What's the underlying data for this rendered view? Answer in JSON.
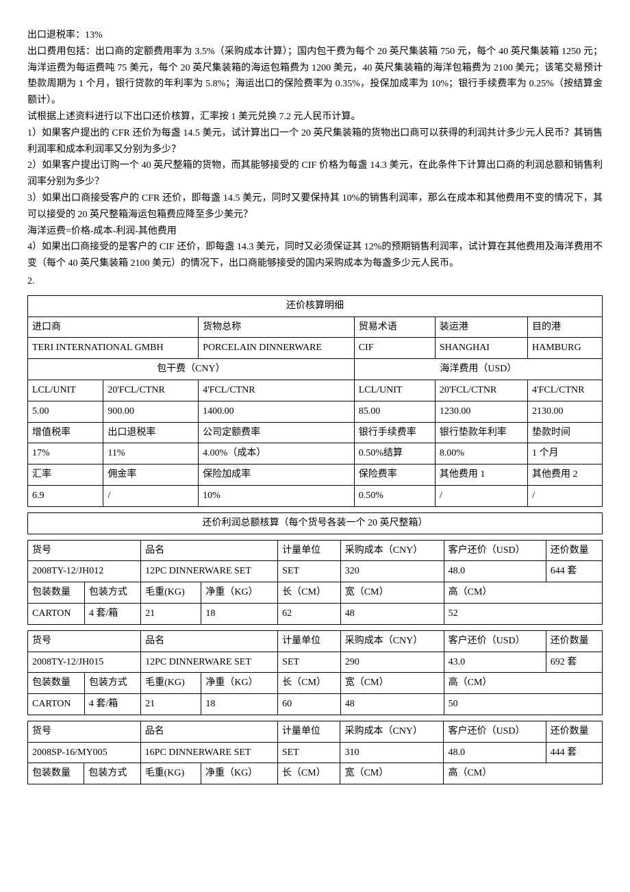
{
  "intro": {
    "p1": "出口退税率：13%",
    "p2": "出口费用包括：出口商的定额费用率为 3.5%（采购成本计算）；国内包干费为每个 20 英尺集装箱 750 元，每个 40 英尺集装箱 1250 元；海洋运费为每运费吨 75 美元，每个 20 英尺集装箱的海运包箱费为 1200 美元，40 英尺集装箱的海洋包箱费为 2100 美元；该笔交易预计垫款周期为 1 个月，银行贷款的年利率为 5.8%；海运出口的保险费率为 0.35%，投保加成率为 10%；银行手续费率为 0.25%（按结算金额计）。",
    "p3": "试根据上述资料进行以下出口还价核算，汇率按 1 美元兑换 7.2 元人民币计算。",
    "q1": "1）如果客户提出的 CFR 还价为每盏 14.5 美元，试计算出口一个 20 英尺集装箱的货物出口商可以获得的利润共计多少元人民币？其销售利润率和成本利润率又分别为多少？",
    "q2": "2）如果客户提出订购一个 40 英尺整箱的货物，而其能够接受的 CIF 价格为每盏 14.3 美元，在此条件下计算出口商的利润总额和销售利润率分别为多少？",
    "q3": "3）如果出口商接受客户的 CFR 还价，即每盏 14.5 美元，同时又要保持其 10%的销售利润率，那么在成本和其他费用不变的情况下，其可以接受的 20 英尺整箱海运包箱费应降至多少美元？",
    "p4": "海洋运费=价格-成本-利润-其他费用",
    "q4": "4）如果出口商接受的是客户的 CIF 还价，即每盏 14.3 美元，同时又必须保证其 12%的预期销售利润率，试计算在其他费用及海洋费用不变（每个 40 英尺集装箱 2100 美元）的情况下，出口商能够接受的国内采购成本为每盏多少元人民币。",
    "num2": "2."
  },
  "table1": {
    "title": "还价核算明细",
    "headers": {
      "importer": "进口商",
      "goods": "货物总称",
      "term": "贸易术语",
      "loadport": "装运港",
      "destport": "目的港"
    },
    "row1": {
      "importer": "TERI INTERNATIONAL GMBH",
      "goods": "PORCELAIN DINNERWARE",
      "term": "CIF",
      "loadport": "SHANGHAI",
      "destport": "HAMBURG"
    },
    "sec1h": "包干费（CNY）",
    "sec2h": "海洋费用（USD）",
    "cols": {
      "c1": "LCL/UNIT",
      "c2": "20'FCL/CTNR",
      "c3": "4'FCL/CTNR",
      "c4": "LCL/UNIT",
      "c5": "20'FCL/CTNR",
      "c6": "4'FCL/CTNR"
    },
    "vals": {
      "v1": "5.00",
      "v2": "900.00",
      "v3": "1400.00",
      "v4": "85.00",
      "v5": "1230.00",
      "v6": "2130.00"
    },
    "row4h": {
      "h1": "增值税率",
      "h2": "出口退税率",
      "h3": "公司定额费率",
      "h4": "银行手续费率",
      "h5": "银行垫款年利率",
      "h6": "垫款时间"
    },
    "row4v": {
      "v1": "17%",
      "v2": "11%",
      "v3": "4.00%（成本）",
      "v4": "0.50%结算",
      "v5": "8.00%",
      "v6": "1 个月"
    },
    "row5h": {
      "h1": "汇率",
      "h2": "佣金率",
      "h3": "保险加成率",
      "h4": "保险费率",
      "h5": "其他费用 1",
      "h6": "其他费用 2"
    },
    "row5v": {
      "v1": "6.9",
      "v2": "/",
      "v3": "10%",
      "v4": "0.50%",
      "v5": "/",
      "v6": "/"
    }
  },
  "table2title": "还价利润总额核算（每个货号各装一个 20 英尺整箱）",
  "product_headers": {
    "h1": "货号",
    "h2": "品名",
    "h3": "计量单位",
    "h4": "采购成本（CNY）",
    "h5": "客户还价（USD）",
    "h6": "还价数量",
    "p1": "包装数量",
    "p2": "包装方式",
    "p3": "毛重(KG)",
    "p4": "净重（KG）",
    "p5": "长（CM）",
    "p6": "宽（CM）",
    "p7": "高（CM）"
  },
  "products": [
    {
      "code": "2008TY-12/JH012",
      "name": "12PC DINNERWARE SET",
      "unit": "SET",
      "cost": "320",
      "price": "48.0",
      "qty": "644 套",
      "pkqty": "CARTON",
      "pkway": "4 套/箱",
      "gw": "21",
      "nw": "18",
      "l": "62",
      "w": "48",
      "h": "52"
    },
    {
      "code": "2008TY-12/JH015",
      "name": "12PC DINNERWARE SET",
      "unit": "SET",
      "cost": "290",
      "price": "43.0",
      "qty": "692 套",
      "pkqty": "CARTON",
      "pkway": "4 套/箱",
      "gw": "21",
      "nw": "18",
      "l": "60",
      "w": "48",
      "h": "50"
    },
    {
      "code": "2008SP-16/MY005",
      "name": "16PC DINNERWARE SET",
      "unit": "SET",
      "cost": "310",
      "price": "48.0",
      "qty": "444 套",
      "pkqty": "",
      "pkway": "",
      "gw": "",
      "nw": "",
      "l": "",
      "w": "",
      "h": ""
    }
  ]
}
